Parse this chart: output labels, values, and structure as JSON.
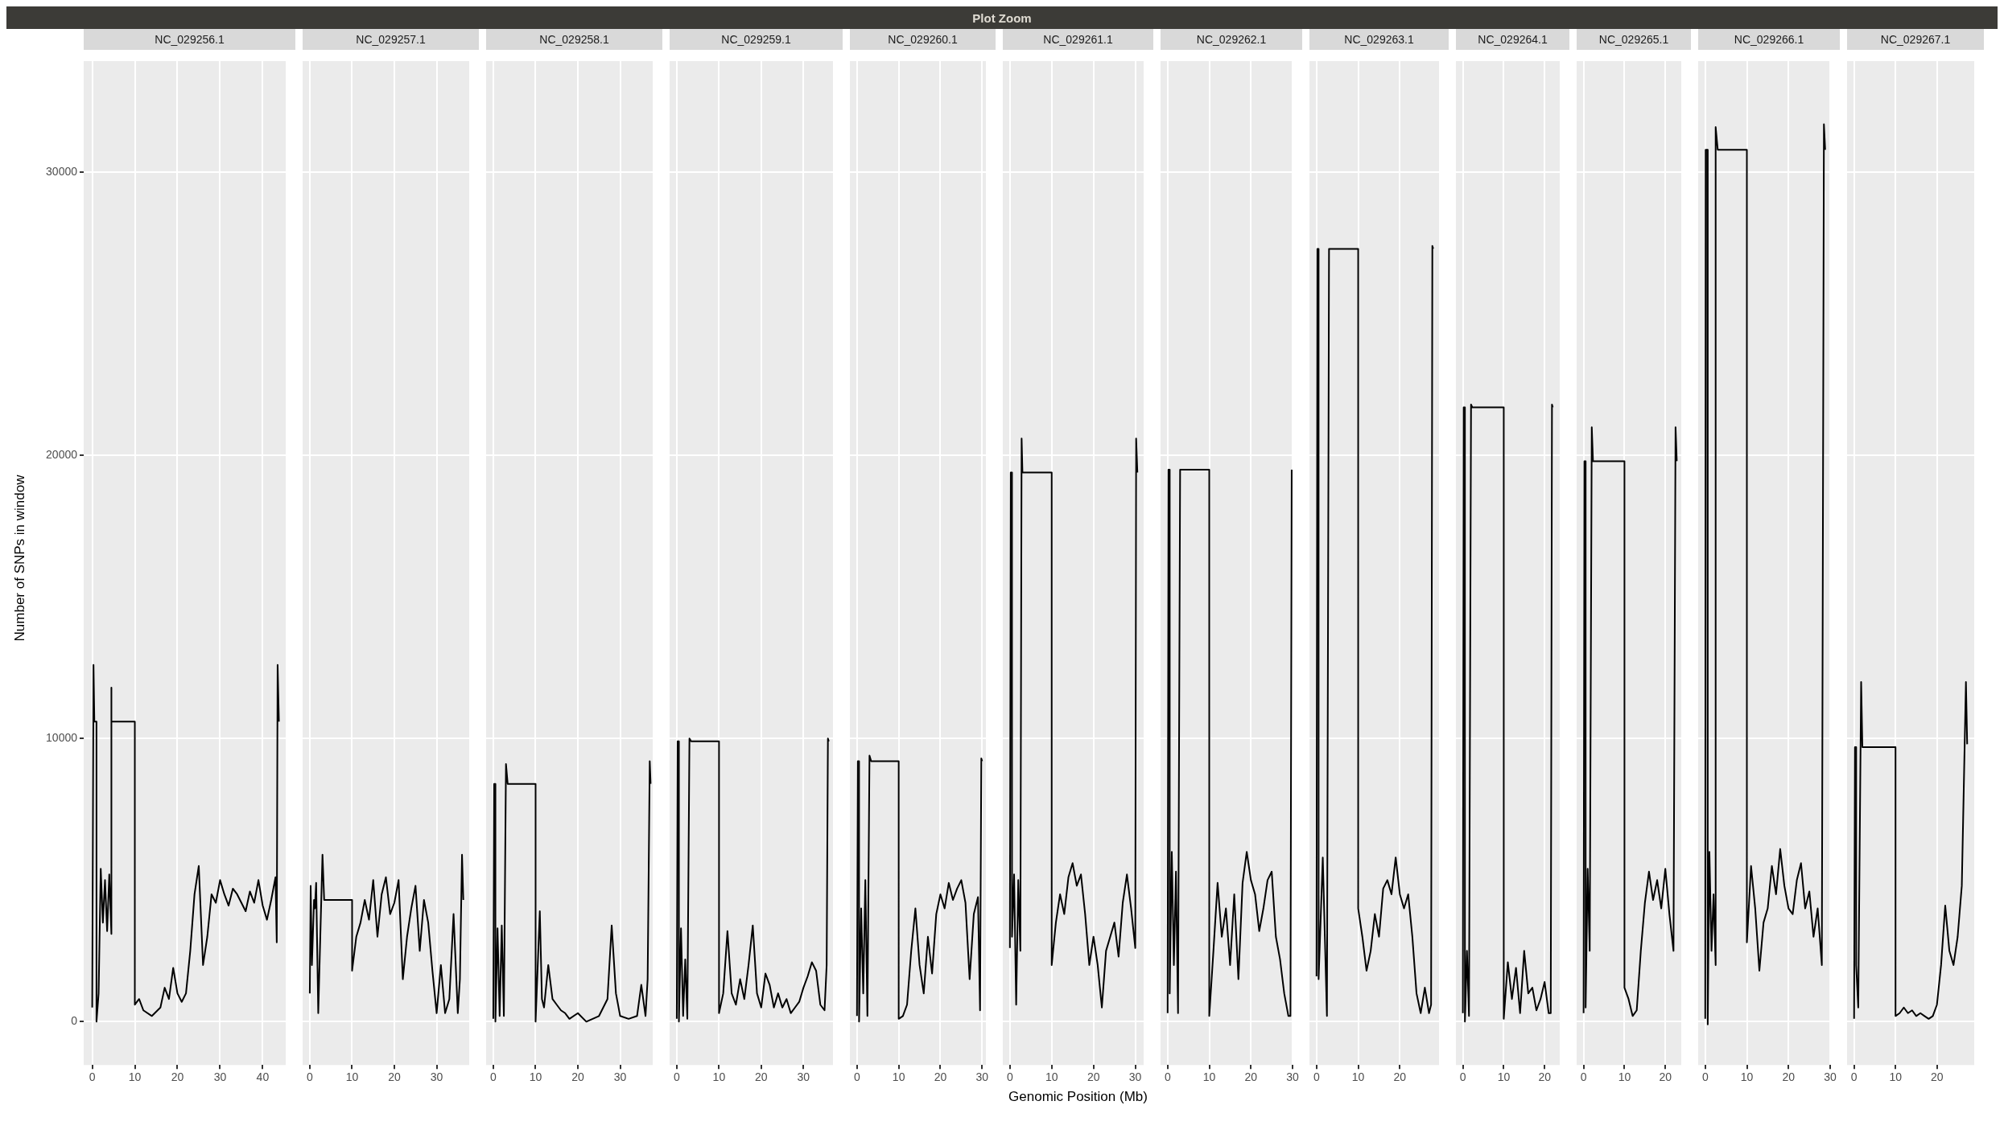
{
  "chart_data": [
    {
      "type": "line",
      "title": "NC_029256.1",
      "ylabel": "Number of SNPs in window",
      "annotations": [
        "Plot Zoom"
      ],
      "grid": true,
      "xlim": [
        -2,
        45.4
      ],
      "xticks": [
        0,
        10,
        20,
        30,
        40
      ],
      "ylim": [
        -1530,
        33930
      ],
      "yticks": [
        0,
        10000,
        20000,
        30000
      ],
      "series": [
        {
          "color": "#000000",
          "x": [
            0,
            0.3,
            0.5,
            1,
            1,
            1.5,
            2,
            2.5,
            3,
            3.5,
            4,
            4.5,
            4.5,
            4.5,
            10,
            10,
            11,
            12,
            14,
            16,
            17,
            18,
            19,
            20,
            21,
            22,
            23,
            24,
            25,
            26,
            27,
            28,
            29,
            30,
            31,
            32,
            33,
            34,
            35,
            36,
            37,
            38,
            39,
            40,
            41,
            42,
            43,
            43.3,
            43.5,
            43.8
          ],
          "values": [
            500,
            12600,
            10600,
            10600,
            0,
            1000,
            5400,
            3500,
            5000,
            3200,
            5200,
            3100,
            11800,
            10600,
            10600,
            600,
            800,
            400,
            200,
            500,
            1200,
            800,
            1900,
            1000,
            700,
            1000,
            2500,
            4500,
            5500,
            2000,
            3000,
            4500,
            4200,
            5000,
            4500,
            4100,
            4700,
            4500,
            4200,
            3900,
            4600,
            4200,
            5000,
            4100,
            3600,
            4300,
            5100,
            2800,
            12600,
            10600
          ]
        }
      ]
    },
    {
      "type": "line",
      "title": "NC_029257.1",
      "tick_labels": "x",
      "grid": true,
      "xlim": [
        -1.7,
        37.7
      ],
      "xticks": [
        0,
        10,
        20,
        30
      ],
      "ylim": [
        -1530,
        33930
      ],
      "yticks": [
        0,
        10000,
        20000,
        30000
      ],
      "series": [
        {
          "color": "#000000",
          "x": [
            0,
            0.2,
            0.5,
            1,
            1.2,
            1.5,
            2,
            3,
            3.4,
            10,
            10,
            11,
            12,
            13,
            14,
            15,
            16,
            17,
            18,
            19,
            20,
            21,
            22,
            23,
            24,
            25,
            26,
            27,
            28,
            29,
            30,
            31,
            32,
            33,
            34,
            35,
            35.5,
            36,
            36.3
          ],
          "values": [
            1000,
            4800,
            2000,
            4300,
            4000,
            4900,
            300,
            5900,
            4300,
            4300,
            1800,
            3000,
            3500,
            4300,
            3600,
            5000,
            3000,
            4500,
            5100,
            3800,
            4200,
            5000,
            1500,
            3000,
            4000,
            4800,
            2500,
            4300,
            3500,
            1800,
            300,
            2000,
            300,
            800,
            3800,
            300,
            1500,
            5900,
            4300
          ]
        }
      ]
    },
    {
      "type": "line",
      "title": "NC_029258.1",
      "tick_labels": "x",
      "grid": true,
      "xlim": [
        -1.7,
        37.7
      ],
      "xticks": [
        0,
        10,
        20,
        30
      ],
      "ylim": [
        -1530,
        33930
      ],
      "yticks": [
        0,
        10000,
        20000,
        30000
      ],
      "series": [
        {
          "color": "#000000",
          "x": [
            0,
            0.2,
            0.5,
            0.5,
            1,
            1.5,
            2,
            2.5,
            3,
            3.4,
            10,
            10,
            11,
            11.5,
            12,
            13,
            14,
            15,
            16,
            17,
            18,
            20,
            22,
            25,
            27,
            28,
            29,
            30,
            32,
            34,
            35,
            36,
            36.5,
            37,
            37.2
          ],
          "values": [
            100,
            8400,
            8400,
            0,
            3300,
            200,
            3400,
            200,
            9100,
            8400,
            8400,
            0,
            3900,
            800,
            500,
            2000,
            800,
            600,
            400,
            300,
            100,
            300,
            0,
            200,
            800,
            3400,
            1000,
            200,
            100,
            200,
            1300,
            200,
            1500,
            9200,
            8400
          ]
        }
      ]
    },
    {
      "type": "line",
      "title": "NC_029259.1",
      "tick_labels": "x",
      "grid": true,
      "xlim": [
        -1.7,
        37
      ],
      "xticks": [
        0,
        10,
        20,
        30
      ],
      "ylim": [
        -1530,
        33930
      ],
      "yticks": [
        0,
        10000,
        20000,
        30000
      ],
      "series": [
        {
          "color": "#000000",
          "x": [
            0,
            0.2,
            0.5,
            0.5,
            1,
            1.5,
            2,
            2.5,
            3,
            3.4,
            10,
            10,
            11,
            12,
            13,
            14,
            15,
            16,
            17,
            18,
            19,
            20,
            21,
            22,
            23,
            24,
            25,
            26,
            27,
            28,
            29,
            30,
            31,
            32,
            33,
            34,
            35,
            35.5,
            35.8,
            36
          ],
          "values": [
            100,
            9900,
            9900,
            0,
            3300,
            200,
            2200,
            100,
            10000,
            9900,
            9900,
            300,
            1000,
            3200,
            1000,
            600,
            1500,
            800,
            2000,
            3400,
            1000,
            500,
            1700,
            1300,
            500,
            1000,
            500,
            800,
            300,
            500,
            700,
            1200,
            1600,
            2100,
            1800,
            600,
            400,
            2000,
            10000,
            9900
          ]
        }
      ]
    },
    {
      "type": "line",
      "title": "NC_029260.1",
      "tick_labels": "x",
      "grid": true,
      "xlim": [
        -1.7,
        30.9
      ],
      "xticks": [
        0,
        10,
        20,
        30
      ],
      "ylim": [
        -1530,
        33930
      ],
      "yticks": [
        0,
        10000,
        20000,
        30000
      ],
      "series": [
        {
          "color": "#000000",
          "x": [
            0,
            0.2,
            0.5,
            0.5,
            1,
            1.5,
            2,
            2.5,
            3,
            3.4,
            10,
            10,
            11,
            12,
            13,
            14,
            15,
            16,
            17,
            18,
            19,
            20,
            21,
            22,
            23,
            24,
            25,
            26,
            27,
            28,
            29,
            29.5,
            29.8,
            30
          ],
          "values": [
            200,
            9200,
            9200,
            0,
            4000,
            1000,
            5000,
            200,
            9400,
            9200,
            9200,
            100,
            200,
            600,
            2500,
            4000,
            2000,
            1000,
            3000,
            1700,
            3800,
            4500,
            4000,
            4900,
            4300,
            4700,
            5000,
            4200,
            1500,
            3800,
            4400,
            400,
            9300,
            9200
          ]
        }
      ]
    },
    {
      "type": "line",
      "title": "NC_029261.1",
      "xlabel": "Genomic Position (Mb)",
      "tick_labels": "x",
      "grid": true,
      "xlim": [
        -1.7,
        32
      ],
      "xticks": [
        0,
        10,
        20,
        30
      ],
      "ylim": [
        -1530,
        33930
      ],
      "yticks": [
        0,
        10000,
        20000,
        30000
      ],
      "series": [
        {
          "color": "#000000",
          "x": [
            0,
            0.2,
            0.5,
            0.5,
            1,
            1.5,
            2,
            2.5,
            2.8,
            3,
            10,
            10,
            11,
            12,
            13,
            14,
            15,
            16,
            17,
            18,
            19,
            20,
            21,
            22,
            23,
            24,
            25,
            26,
            27,
            28,
            29,
            30,
            30.2,
            30.5
          ],
          "values": [
            2600,
            19400,
            19400,
            3000,
            5200,
            600,
            5000,
            2500,
            20600,
            19400,
            19400,
            2000,
            3500,
            4500,
            3800,
            5100,
            5600,
            4800,
            5200,
            3800,
            2000,
            3000,
            2000,
            500,
            2500,
            3000,
            3500,
            2300,
            4200,
            5200,
            4000,
            2600,
            20600,
            19400
          ]
        }
      ]
    },
    {
      "type": "line",
      "title": "NC_029262.1",
      "tick_labels": "x",
      "grid": true,
      "xlim": [
        -1.7,
        30
      ],
      "xticks": [
        0,
        10,
        20,
        30
      ],
      "ylim": [
        -1530,
        33930
      ],
      "yticks": [
        0,
        10000,
        20000,
        30000
      ],
      "series": [
        {
          "color": "#000000",
          "x": [
            0,
            0.2,
            0.5,
            0.5,
            1,
            1.5,
            2,
            2.5,
            3,
            10,
            10,
            11,
            12,
            13,
            14,
            15,
            16,
            17,
            18,
            19,
            20,
            21,
            22,
            23,
            24,
            25,
            26,
            27,
            28,
            29,
            29.5,
            29.8
          ],
          "values": [
            300,
            19500,
            19500,
            1000,
            6000,
            2000,
            5300,
            300,
            19500,
            19500,
            200,
            2500,
            4900,
            3000,
            4000,
            2000,
            4500,
            1500,
            4900,
            6000,
            5000,
            4500,
            3200,
            4000,
            5000,
            5300,
            3000,
            2200,
            1000,
            200,
            200,
            19500
          ]
        }
      ]
    },
    {
      "type": "line",
      "title": "NC_029263.1",
      "tick_labels": "x",
      "grid": true,
      "xlim": [
        -1.7,
        29.4
      ],
      "xticks": [
        0,
        10,
        20
      ],
      "ylim": [
        -1530,
        33930
      ],
      "yticks": [
        0,
        10000,
        20000,
        30000
      ],
      "series": [
        {
          "color": "#000000",
          "x": [
            0,
            0.2,
            0.5,
            0.5,
            1.5,
            2,
            2.5,
            3,
            10,
            10,
            11,
            12,
            13,
            14,
            15,
            16,
            17,
            18,
            19,
            20,
            21,
            22,
            23,
            24,
            25,
            26,
            27,
            27.5,
            27.8,
            28
          ],
          "values": [
            1600,
            27300,
            27300,
            1500,
            5800,
            3000,
            200,
            27300,
            27300,
            4000,
            3000,
            1800,
            2500,
            3800,
            3000,
            4700,
            5000,
            4500,
            5800,
            4500,
            4000,
            4500,
            3000,
            1000,
            300,
            1200,
            300,
            600,
            27400,
            27300
          ]
        }
      ]
    },
    {
      "type": "line",
      "title": "NC_029264.1",
      "tick_labels": "x",
      "grid": true,
      "xlim": [
        -1.7,
        23.7
      ],
      "xticks": [
        0,
        10,
        20
      ],
      "ylim": [
        -1530,
        33930
      ],
      "yticks": [
        0,
        10000,
        20000,
        30000
      ],
      "series": [
        {
          "color": "#000000",
          "x": [
            0,
            0.2,
            0.5,
            0.5,
            1,
            1.5,
            2,
            2.3,
            10,
            10,
            11,
            12,
            13,
            14,
            15,
            16,
            17,
            18,
            19,
            20,
            21,
            21.5,
            21.8,
            22
          ],
          "values": [
            300,
            21700,
            21700,
            0,
            2500,
            200,
            21800,
            21700,
            21700,
            100,
            2100,
            800,
            1900,
            300,
            2500,
            1000,
            1200,
            400,
            800,
            1400,
            300,
            300,
            21800,
            21700
          ]
        }
      ]
    },
    {
      "type": "line",
      "title": "NC_029265.1",
      "tick_labels": "x",
      "grid": true,
      "xlim": [
        -1.7,
        23.9
      ],
      "xticks": [
        0,
        10,
        20
      ],
      "ylim": [
        -1530,
        33930
      ],
      "yticks": [
        0,
        10000,
        20000,
        30000
      ],
      "series": [
        {
          "color": "#000000",
          "x": [
            0,
            0.2,
            0.5,
            0.5,
            1,
            1.5,
            2,
            2.3,
            10,
            10,
            11,
            12,
            13,
            14,
            15,
            16,
            17,
            18,
            19,
            20,
            21,
            22,
            22.5,
            22.8
          ],
          "values": [
            300,
            19800,
            19800,
            500,
            5400,
            2500,
            21000,
            19800,
            19800,
            1200,
            800,
            200,
            400,
            2500,
            4200,
            5300,
            4300,
            5000,
            4000,
            5400,
            3800,
            2500,
            21000,
            19800
          ]
        }
      ]
    },
    {
      "type": "line",
      "title": "NC_029266.1",
      "tick_labels": "x",
      "grid": true,
      "xlim": [
        -1.7,
        30
      ],
      "xticks": [
        0,
        10,
        20,
        30
      ],
      "ylim": [
        -1530,
        33930
      ],
      "yticks": [
        0,
        10000,
        20000,
        30000
      ],
      "series": [
        {
          "color": "#000000",
          "x": [
            0,
            0.1,
            0.5,
            0.6,
            1,
            1.5,
            2,
            2.5,
            2.5,
            3,
            10,
            10,
            11,
            12,
            13,
            14,
            15,
            16,
            17,
            18,
            19,
            20,
            21,
            22,
            23,
            24,
            25,
            26,
            27,
            28,
            28.5,
            28.8
          ],
          "values": [
            100,
            30800,
            30800,
            -100,
            6000,
            2500,
            4500,
            2000,
            31600,
            30800,
            30800,
            2800,
            5500,
            4000,
            1800,
            3500,
            4000,
            5500,
            4500,
            6100,
            4800,
            4000,
            3800,
            5000,
            5600,
            4000,
            4600,
            3000,
            4000,
            2000,
            31700,
            30800
          ]
        }
      ]
    },
    {
      "type": "line",
      "title": "NC_029267.1",
      "tick_labels": "x",
      "grid": true,
      "xlim": [
        -1.7,
        29
      ],
      "xticks": [
        0,
        10,
        20
      ],
      "ylim": [
        -1530,
        33930
      ],
      "yticks": [
        0,
        10000,
        20000,
        30000
      ],
      "series": [
        {
          "color": "#000000",
          "x": [
            0,
            0.2,
            0.5,
            0.5,
            1,
            1.7,
            2,
            10,
            10,
            11,
            12,
            13,
            14,
            15,
            16,
            17,
            18,
            19,
            20,
            21,
            22,
            23,
            24,
            25,
            26,
            27,
            27.3
          ],
          "values": [
            100,
            9700,
            9700,
            2000,
            500,
            12000,
            9700,
            9700,
            200,
            300,
            500,
            300,
            400,
            200,
            300,
            200,
            100,
            200,
            600,
            2000,
            4100,
            2500,
            2000,
            3000,
            4800,
            12000,
            9800
          ]
        }
      ]
    }
  ]
}
